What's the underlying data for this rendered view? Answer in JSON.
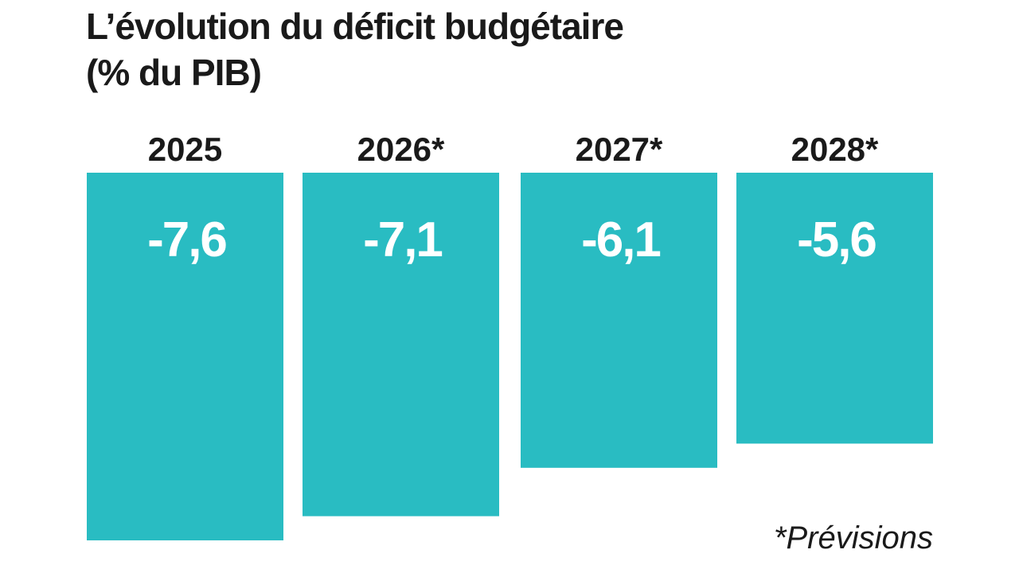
{
  "chart_data": {
    "type": "bar",
    "title_line1": "L’évolution du déficit budgétaire",
    "title_line2": "(% du PIB)",
    "categories": [
      "2025",
      "2026*",
      "2027*",
      "2028*"
    ],
    "values": [
      -7.6,
      -7.1,
      -6.1,
      -5.6
    ],
    "value_labels": [
      "-7,6",
      "-7,1",
      "-6,1",
      "-5,6"
    ],
    "ylim": [
      -7.6,
      0
    ],
    "footnote": "*Prévisions",
    "bar_color": "#29bcc2"
  }
}
